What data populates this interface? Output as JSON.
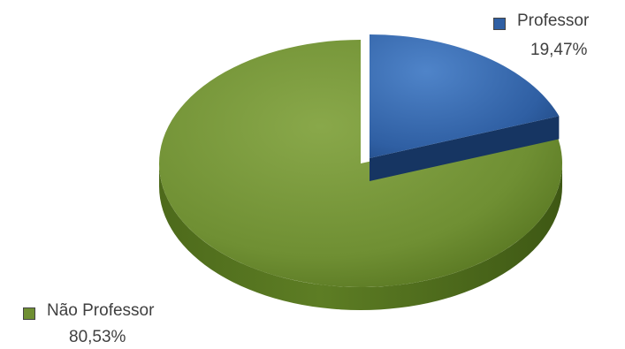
{
  "chart_data": {
    "type": "pie",
    "style": "3d-exploded",
    "title": "",
    "slices": [
      {
        "label": "Professor",
        "percent_label": "19,47%",
        "value": 19.47,
        "color": "#2f5fa3"
      },
      {
        "label": "Não Professor",
        "percent_label": "80,53%",
        "value": 80.53,
        "color": "#6f8f33"
      }
    ],
    "legend": "inline-labels"
  }
}
